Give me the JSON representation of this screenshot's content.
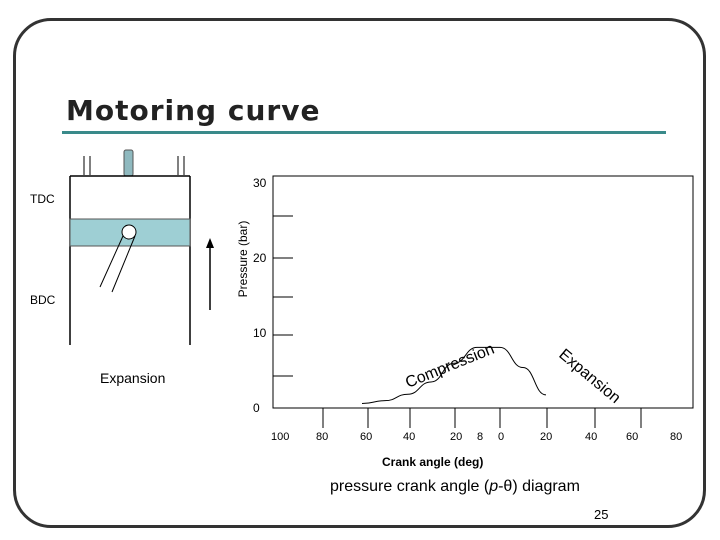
{
  "slide": {
    "title": "Motoring curve",
    "page_number": "25"
  },
  "engine": {
    "tdc_label": "TDC",
    "bdc_label": "BDC",
    "expansion_label": "Expansion"
  },
  "chart": {
    "y_axis_label": "Pressure (bar)",
    "x_axis_label": "Crank angle (deg)",
    "caption_prefix": "pressure crank angle (",
    "caption_p": "p",
    "caption_sep": "-",
    "caption_theta": "θ",
    "caption_suffix": ") diagram",
    "compression_label": "Compression",
    "expansion_label": "Expansion",
    "y_ticks": [
      "30",
      "20",
      "10",
      "0"
    ],
    "x_ticks": [
      "100",
      "80",
      "60",
      "40",
      "20",
      "8",
      "0",
      "20",
      "40",
      "60",
      "80"
    ]
  },
  "chart_data": {
    "type": "line",
    "xlabel": "Crank angle (deg)",
    "ylabel": "Pressure (bar)",
    "ylim": [
      0,
      30
    ],
    "x_tick_labels": [
      "100",
      "80",
      "60",
      "40",
      "20",
      "8",
      "0",
      "20",
      "40",
      "60",
      "80"
    ],
    "y_tick_labels": [
      "30",
      "20",
      "10",
      "0"
    ],
    "series": [
      {
        "x": [
          -60,
          -50,
          -40,
          -30,
          -20,
          -10,
          0,
          10,
          20
        ],
        "y": [
          0.2,
          0.6,
          1.5,
          3.2,
          5.8,
          8.0,
          8.0,
          5.2,
          1.4
        ]
      }
    ],
    "annotations": [
      "Compression",
      "Expansion"
    ]
  }
}
